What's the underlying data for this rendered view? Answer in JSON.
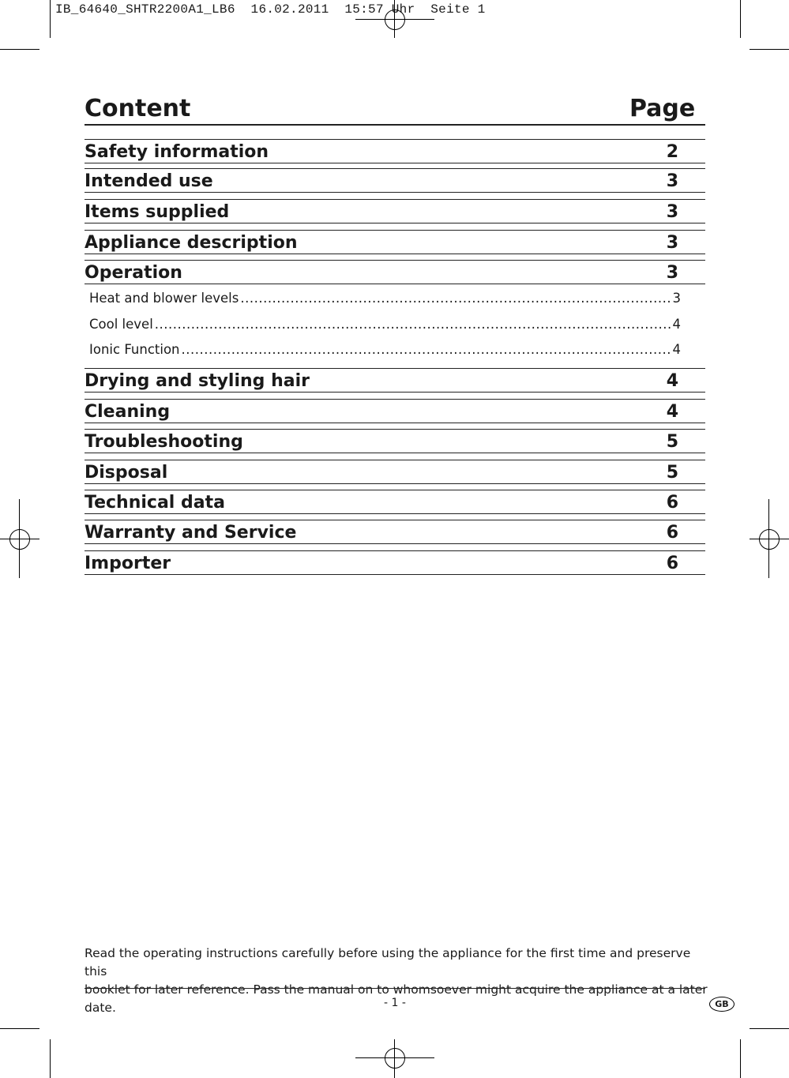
{
  "print_header": "IB_64640_SHTR2200A1_LB6  16.02.2011  15:57 Uhr  Seite 1",
  "heading": {
    "left": "Content",
    "right": "Page"
  },
  "sections": [
    {
      "title": "Safety information",
      "page": "2"
    },
    {
      "title": "Intended use",
      "page": "3"
    },
    {
      "title": "Items supplied",
      "page": "3"
    },
    {
      "title": "Appliance description",
      "page": "3"
    },
    {
      "title": "Operation",
      "page": "3"
    },
    {
      "title": "Drying and styling hair",
      "page": "4"
    },
    {
      "title": "Cleaning",
      "page": "4"
    },
    {
      "title": "Troubleshooting",
      "page": "5"
    },
    {
      "title": "Disposal",
      "page": "5"
    },
    {
      "title": "Technical data",
      "page": "6"
    },
    {
      "title": "Warranty and Service",
      "page": "6"
    },
    {
      "title": "Importer",
      "page": "6"
    }
  ],
  "subsections": [
    {
      "title": "Heat and blower levels",
      "page": "3"
    },
    {
      "title": "Cool level",
      "page": "4"
    },
    {
      "title": "Ionic Function",
      "page": "4"
    }
  ],
  "footer": {
    "line1": "Read the operating instructions carefully before using the appliance for the first time and preserve this",
    "line2": "booklet for later reference. Pass the manual on to whomsoever might acquire the appliance at a later date.",
    "page_number": "- 1 -",
    "language_badge": "GB"
  }
}
